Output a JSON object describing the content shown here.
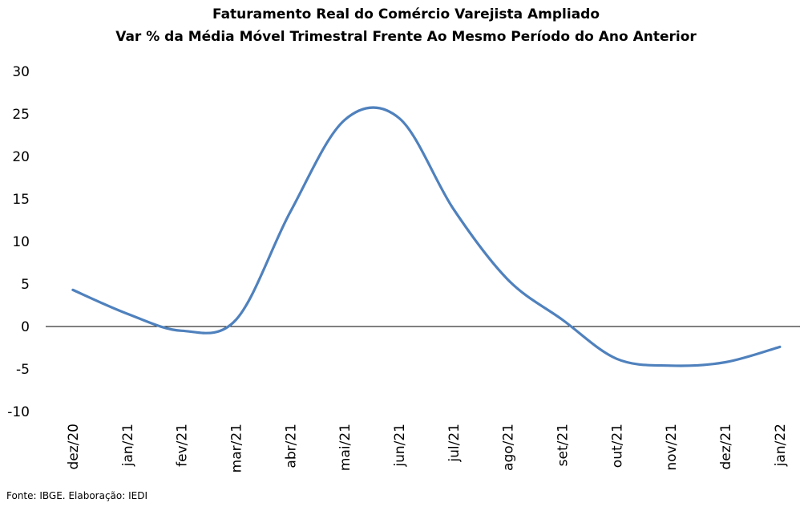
{
  "chart_data": {
    "type": "line",
    "title": "Faturamento Real do Comércio Varejista Ampliado",
    "subtitle": "Var % da Média Móvel Trimestral Frente Ao Mesmo Período do Ano Anterior",
    "xlabel": "",
    "ylabel": "",
    "categories": [
      "dez/20",
      "jan/21",
      "fev/21",
      "mar/21",
      "abr/21",
      "mai/21",
      "jun/21",
      "jul/21",
      "ago/21",
      "set/21",
      "out/21",
      "nov/21",
      "dez/21",
      "jan/22"
    ],
    "series": [
      {
        "values": [
          4.3,
          1.5,
          -0.5,
          0.8,
          13.5,
          24.3,
          24.5,
          13.8,
          5.5,
          0.8,
          -3.8,
          -4.6,
          -4.2,
          -2.4
        ],
        "color": "#4F81BD"
      }
    ],
    "ylim": [
      -10,
      30
    ],
    "yticks": [
      "30",
      "25",
      "20",
      "15",
      "10",
      "5",
      "0",
      "-5",
      "-10"
    ],
    "grid": false,
    "legend": "none"
  },
  "source": "Fonte: IBGE. Elaboração: IEDI"
}
